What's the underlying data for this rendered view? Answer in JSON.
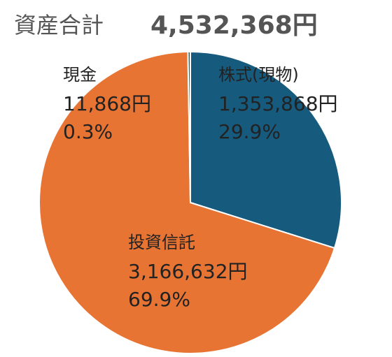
{
  "chart_data": {
    "type": "pie",
    "title": "資産合計",
    "total_label": "4,532,368円",
    "categories": [
      "株式(現物)",
      "投資信託",
      "現金"
    ],
    "values": [
      1353868,
      3166632,
      11868
    ],
    "value_labels": [
      "1,353,868円",
      "3,166,632円",
      "11,868円"
    ],
    "percent_labels": [
      "29.9%",
      "69.9%",
      "0.3%"
    ],
    "colors": [
      "#165a7e",
      "#e87434",
      "#3d5a4a"
    ]
  }
}
